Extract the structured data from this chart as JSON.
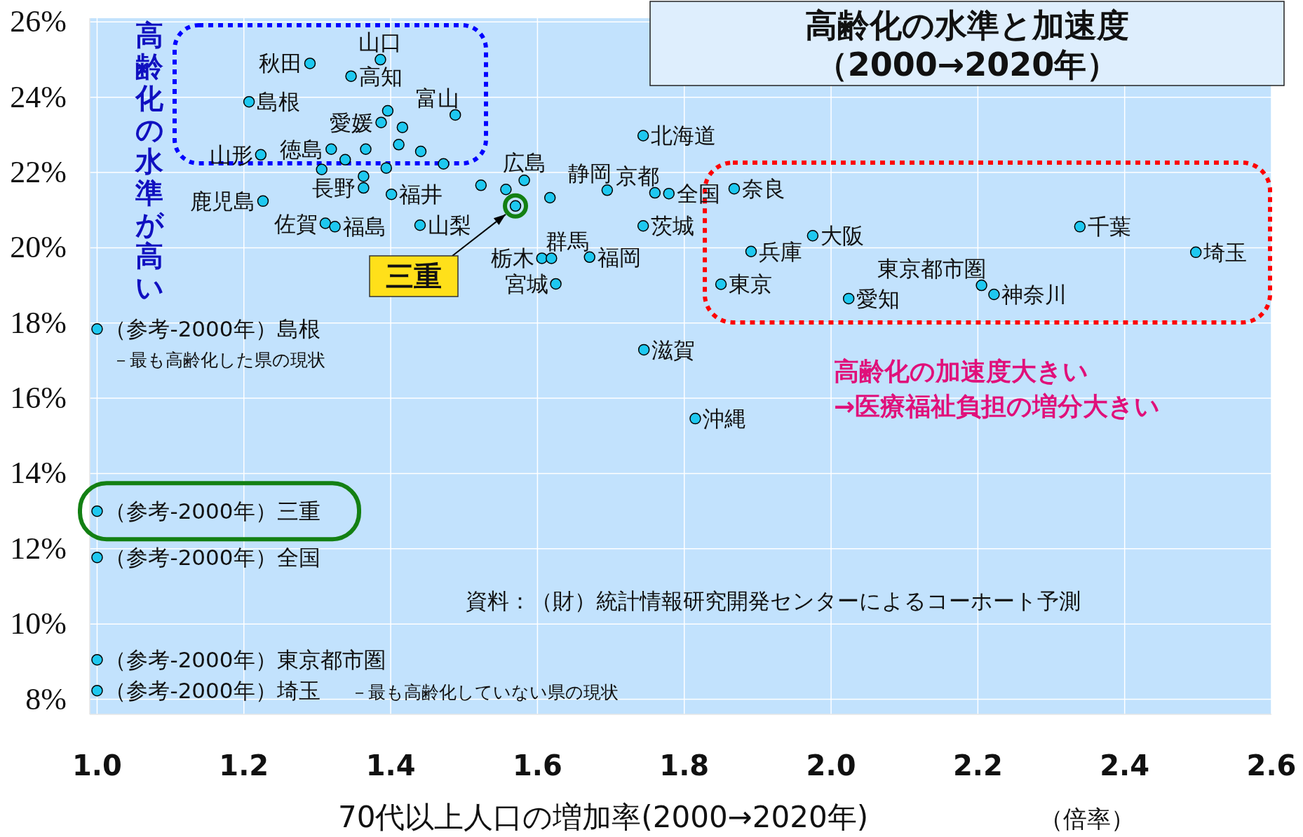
{
  "chart_data": {
    "type": "scatter",
    "title": "高齢化の水準と加速度",
    "subtitle": "（2000→2020年）",
    "xlabel": "70代以上人口の増加率(2000→2020年)",
    "x": [
      1.29,
      1.386,
      1.346,
      1.207,
      1.488,
      1.396,
      1.387,
      1.416,
      1.223,
      1.319,
      1.338,
      1.366,
      1.411,
      1.441,
      1.472,
      1.394,
      1.306,
      1.363,
      1.363,
      1.401,
      1.226,
      1.311,
      1.324,
      1.44,
      1.582,
      1.523,
      1.557,
      1.617,
      1.57,
      1.606,
      1.619,
      1.625,
      1.671,
      1.695,
      1.76,
      1.779,
      1.744,
      1.744,
      1.868,
      1.975,
      1.891,
      1.85,
      2.024,
      2.205,
      2.222,
      2.339,
      2.497,
      1.745,
      1.815,
      1.0,
      1.0,
      1.0,
      1.0,
      1.0
    ],
    "values": [
      24.9,
      25.0,
      24.56,
      23.88,
      23.53,
      23.64,
      23.33,
      23.2,
      22.47,
      22.62,
      22.34,
      22.62,
      22.74,
      22.56,
      22.23,
      22.12,
      22.08,
      21.9,
      21.59,
      21.42,
      21.24,
      20.65,
      20.56,
      20.6,
      21.79,
      21.66,
      21.55,
      21.33,
      21.11,
      19.72,
      19.72,
      19.04,
      19.75,
      21.53,
      21.46,
      21.44,
      22.98,
      20.58,
      21.57,
      20.32,
      19.9,
      19.03,
      18.65,
      19.0,
      18.76,
      20.56,
      19.88,
      17.29,
      15.46,
      17.84,
      13.0,
      11.77,
      9.05,
      8.23
    ],
    "color": "#1ec8f0",
    "marker": "circle",
    "grid": true,
    "xlim": [
      0.99,
      2.6
    ],
    "ylim": [
      7.6,
      26.1
    ],
    "xticks": [
      {
        "value": 1,
        "label": "1.0"
      },
      1.2,
      1.4,
      1.6,
      1.8,
      {
        "value": 2,
        "label": "2.0"
      },
      2.2,
      2.4,
      2.6
    ],
    "yticks": [
      {
        "value": 8,
        "label": "8%"
      },
      {
        "value": 10,
        "label": "10%"
      },
      {
        "value": 12,
        "label": "12%"
      },
      {
        "value": 14,
        "label": "14%"
      },
      {
        "value": 16,
        "label": "16%"
      },
      {
        "value": 18,
        "label": "18%"
      },
      {
        "value": 20,
        "label": "20%"
      },
      {
        "value": 22,
        "label": "22%"
      },
      {
        "value": 24,
        "label": "24%"
      },
      {
        "value": 26,
        "label": "26%"
      }
    ],
    "annotations": [
      {
        "text": "秋田",
        "x": 1.29,
        "y": 24.9
      },
      {
        "text": "山口",
        "x": 1.386,
        "y": 25.0
      },
      {
        "text": "高知",
        "x": 1.346,
        "y": 24.56
      },
      {
        "text": "島根",
        "x": 1.207,
        "y": 23.88
      },
      {
        "text": "富山",
        "x": 1.488,
        "y": 23.53
      },
      {
        "text": "愛媛",
        "x": 1.387,
        "y": 23.33
      },
      {
        "text": "山形",
        "x": 1.223,
        "y": 22.47
      },
      {
        "text": "徳島",
        "x": 1.319,
        "y": 22.62
      },
      {
        "text": "長野",
        "x": 1.363,
        "y": 21.59
      },
      {
        "text": "福井",
        "x": 1.401,
        "y": 21.42
      },
      {
        "text": "鹿児島",
        "x": 1.226,
        "y": 21.24
      },
      {
        "text": "佐賀",
        "x": 1.311,
        "y": 20.65
      },
      {
        "text": "福島",
        "x": 1.324,
        "y": 20.56
      },
      {
        "text": "山梨",
        "x": 1.44,
        "y": 20.6
      },
      {
        "text": "広島",
        "x": 1.582,
        "y": 21.79
      },
      "三重",
      {
        "text": "栃木",
        "x": 1.606,
        "y": 19.72
      },
      {
        "text": "群馬",
        "x": 1.619,
        "y": 19.72
      },
      {
        "text": "宮城",
        "x": 1.625,
        "y": 19.04
      },
      {
        "text": "福岡",
        "x": 1.671,
        "y": 19.75
      },
      {
        "text": "静岡",
        "x": 1.695,
        "y": 21.53
      },
      {
        "text": "京都",
        "x": 1.76,
        "y": 21.46
      },
      {
        "text": "全国",
        "x": 1.779,
        "y": 21.44
      },
      {
        "text": "北海道",
        "x": 1.744,
        "y": 22.98
      },
      {
        "text": "茨城",
        "x": 1.744,
        "y": 20.58
      },
      {
        "text": "奈良",
        "x": 1.868,
        "y": 21.57
      },
      {
        "text": "大阪",
        "x": 1.975,
        "y": 20.32
      },
      {
        "text": "兵庫",
        "x": 1.891,
        "y": 19.9
      },
      {
        "text": "東京",
        "x": 1.85,
        "y": 19.03
      },
      {
        "text": "愛知",
        "x": 2.024,
        "y": 18.65
      },
      {
        "text": "東京都市圏",
        "x": 2.205,
        "y": 19.0
      },
      {
        "text": "神奈川",
        "x": 2.222,
        "y": 18.76
      },
      {
        "text": "千葉",
        "x": 2.339,
        "y": 20.56
      },
      {
        "text": "埼玉",
        "x": 2.497,
        "y": 19.88
      },
      {
        "text": "滋賀",
        "x": 1.745,
        "y": 17.29
      },
      {
        "text": "沖縄",
        "x": 1.815,
        "y": 15.46
      },
      {
        "text": "（参考-2000年）島根",
        "x": 1.0,
        "y": 17.84
      },
      {
        "text": "（参考-2000年）三重",
        "x": 1.0,
        "y": 13.0
      },
      {
        "text": "（参考-2000年）全国",
        "x": 1.0,
        "y": 11.77
      },
      {
        "text": "（参考-2000年）東京都市圏",
        "x": 1.0,
        "y": 9.05
      },
      {
        "text": "（参考-2000年）埼玉",
        "x": 1.0,
        "y": 8.23
      },
      "－最も高齢化した県の現状",
      "－最も高齢化していない県の現状",
      "高齢化の水準が高い",
      "高齢化の加速度大きい",
      "→医療福祉負担の増分大きい",
      "資料：（財）統計情報研究開発センターによるコーホート予測",
      "（倍率）"
    ]
  }
}
